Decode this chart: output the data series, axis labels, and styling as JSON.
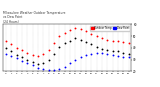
{
  "title": "Milwaukee Weather Outdoor Temperature\nvs Dew Point\n(24 Hours)",
  "title_fontsize": 2.2,
  "background_color": "#ffffff",
  "legend_entries": [
    "Outdoor Temp",
    "Dew Point"
  ],
  "legend_colors": [
    "#ff0000",
    "#0000ff"
  ],
  "hours": [
    0,
    1,
    2,
    3,
    4,
    5,
    6,
    7,
    8,
    9,
    10,
    11,
    12,
    13,
    14,
    15,
    16,
    17,
    18,
    19,
    20,
    21,
    22,
    23
  ],
  "temp_values": [
    46,
    43,
    40,
    38,
    36,
    34,
    33,
    35,
    38,
    44,
    50,
    53,
    55,
    57,
    56,
    54,
    52,
    50,
    48,
    47,
    46,
    46,
    45,
    44
  ],
  "dew_values": [
    35,
    33,
    31,
    29,
    27,
    25,
    23,
    22,
    21,
    21,
    22,
    24,
    27,
    30,
    32,
    34,
    35,
    36,
    36,
    35,
    34,
    33,
    32,
    32
  ],
  "feels_values": [
    40,
    37,
    34,
    32,
    30,
    28,
    26,
    27,
    30,
    35,
    41,
    44,
    46,
    48,
    47,
    45,
    43,
    41,
    39,
    38,
    37,
    37,
    36,
    35
  ],
  "ylim": [
    20,
    60
  ],
  "ytick_labels": [
    "60",
    "50",
    "40",
    "30",
    "20"
  ],
  "ytick_values": [
    60,
    50,
    40,
    30,
    20
  ],
  "grid_positions": [
    0,
    1,
    2,
    3,
    4,
    5,
    6,
    7,
    8,
    9,
    10,
    11,
    12,
    13,
    14,
    15,
    16,
    17,
    18,
    19,
    20,
    21,
    22,
    23
  ],
  "grid_color": "#aaaaaa",
  "temp_color": "#ff0000",
  "dew_color": "#0000ff",
  "feels_color": "#000000",
  "marker_size": 1.8,
  "legend_bar_color_temp": "#ff0000",
  "legend_bar_color_dew": "#0000ff"
}
